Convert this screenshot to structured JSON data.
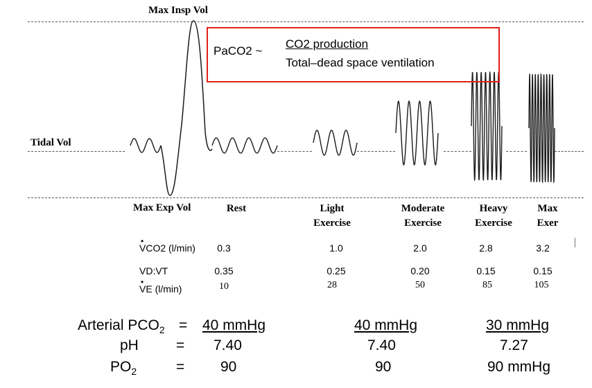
{
  "diagram": {
    "labels": {
      "max_insp_vol": "Max Insp Vol",
      "tidal_vol": "Tidal Vol",
      "max_exp_vol": "Max Exp Vol"
    },
    "formula": {
      "lhs": "PaCO2 ~",
      "numerator": "CO2 production",
      "denominator": "Total–dead space ventilation"
    },
    "columns": [
      "Rest",
      "Light\nExercise",
      "Moderate\nExercise",
      "Heavy\nExercise",
      "Max\nExer"
    ],
    "rows": [
      {
        "label": "VCO2 (l/min)",
        "values": [
          "0.3",
          "1.0",
          "2.0",
          "2.8",
          "3.2"
        ]
      },
      {
        "label": "VD:VT",
        "values": [
          "0.35",
          "0.25",
          "0.20",
          "0.15",
          "0.15"
        ]
      },
      {
        "label": "VE (l/min)",
        "values": [
          "10",
          "28",
          "50",
          "85",
          "105"
        ]
      }
    ],
    "blood": {
      "labels": [
        "Arterial PCO",
        "pH",
        "PO"
      ],
      "subscript": "2",
      "equals": "=",
      "values": [
        [
          "40 mmHg",
          "40 mmHg",
          "30 mmHg"
        ],
        [
          "7.40",
          "7.40",
          "7.27"
        ],
        [
          "90",
          "90",
          "90 mmHg"
        ]
      ]
    },
    "colors": {
      "box": "#e0201b",
      "wave": "#1a1a1a",
      "dash": "#555555"
    }
  }
}
